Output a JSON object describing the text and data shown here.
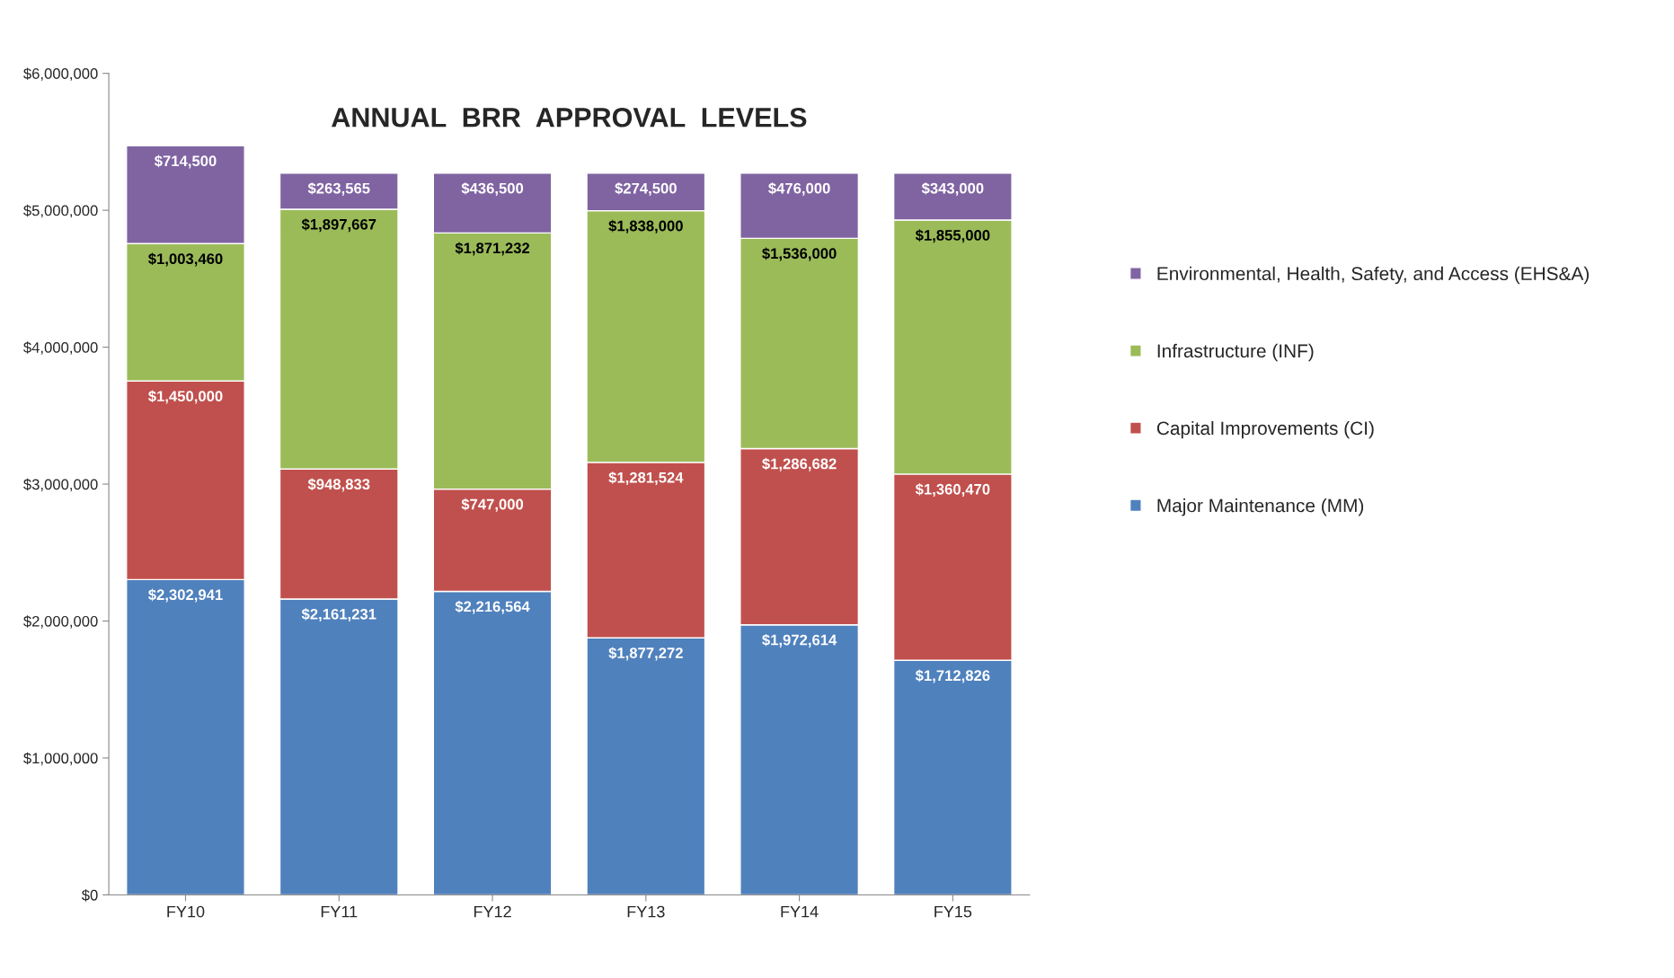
{
  "chart_data": {
    "type": "bar",
    "title": "ANNUAL  BRR  APPROVAL  LEVELS",
    "stacked": true,
    "categories": [
      "FY10",
      "FY11",
      "FY12",
      "FY13",
      "FY14",
      "FY15"
    ],
    "series": [
      {
        "name": "Major Maintenance (MM)",
        "color": "#4f81bd",
        "values": [
          2302941,
          2161231,
          2216564,
          1877272,
          1972614,
          1712826
        ],
        "value_labels": [
          "$2,302,941",
          "$2,161,231",
          "$2,216,564",
          "$1,877,272",
          "$1,972,614",
          "$1,712,826"
        ]
      },
      {
        "name": "Capital Improvements (CI)",
        "color": "#c0504d",
        "values": [
          1450000,
          948833,
          747000,
          1281524,
          1286682,
          1360470
        ],
        "value_labels": [
          "$1,450,000",
          "$948,833",
          "$747,000",
          "$1,281,524",
          "$1,286,682",
          "$1,360,470"
        ]
      },
      {
        "name": "Infrastructure (INF)",
        "color": "#9bbb59",
        "values": [
          1003460,
          1897667,
          1871232,
          1838000,
          1536000,
          1855000
        ],
        "value_labels": [
          "$1,003,460",
          "$1,897,667",
          "$1,871,232",
          "$1,838,000",
          "$1,536,000",
          "$1,855,000"
        ]
      },
      {
        "name": "Environmental, Health, Safety, and Access (EHS&A)",
        "color": "#8064a2",
        "values": [
          714500,
          263565,
          436500,
          274500,
          476000,
          343000
        ],
        "value_labels": [
          "$714,500",
          "$263,565",
          "$436,500",
          "$274,500",
          "$476,000",
          "$343,000"
        ]
      }
    ],
    "ylim": [
      0,
      6000000
    ],
    "yticks": [
      {
        "value": 0,
        "label": "$0"
      },
      {
        "value": 1000000,
        "label": "$1,000,000"
      },
      {
        "value": 2000000,
        "label": "$2,000,000"
      },
      {
        "value": 3000000,
        "label": "$3,000,000"
      },
      {
        "value": 4000000,
        "label": "$4,000,000"
      },
      {
        "value": 5000000,
        "label": "$5,000,000"
      },
      {
        "value": 6000000,
        "label": "$6,000,000"
      }
    ],
    "grid": false,
    "legend": "right"
  }
}
